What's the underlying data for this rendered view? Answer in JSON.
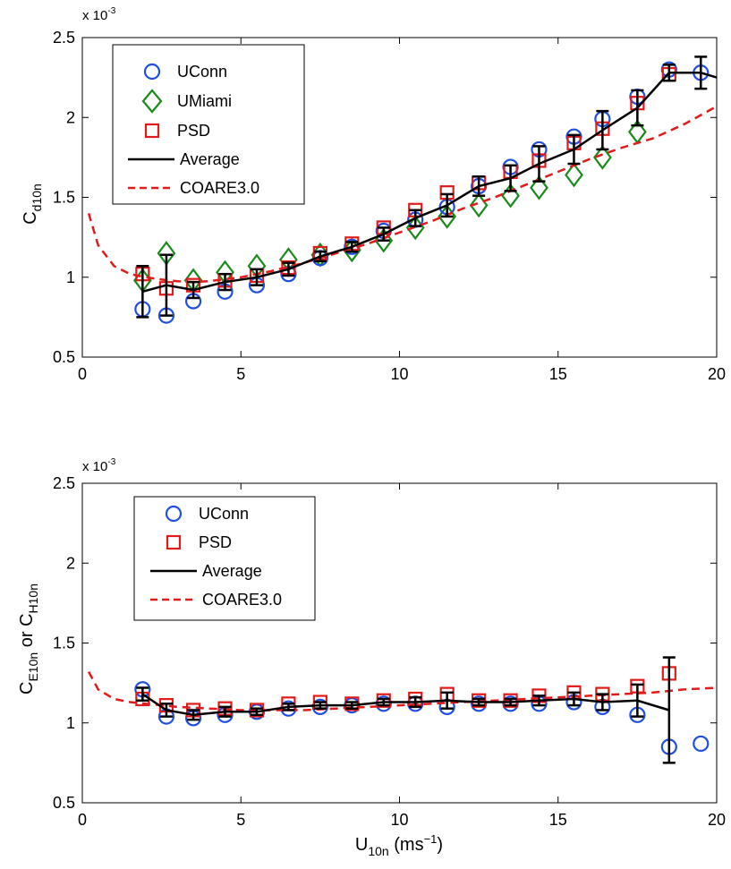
{
  "colors": {
    "uconn": "#1f4fe0",
    "umiami": "#1a8a1a",
    "psd": "#e31a1a",
    "average": "#000000",
    "coare": "#e31a1a"
  },
  "chart_data": [
    {
      "type": "scatter",
      "xlabel": "",
      "ylabel_base": "C",
      "ylabel_sub": "d10n",
      "exponent_base": "x 10",
      "exponent_sup": "-3",
      "xlim": [
        0,
        20
      ],
      "ylim": [
        0.5,
        2.5
      ],
      "xticks": [
        0,
        5,
        10,
        15,
        20
      ],
      "yticks": [
        0.5,
        1,
        1.5,
        2,
        2.5
      ],
      "xtick_labels": [
        "0",
        "5",
        "10",
        "15",
        "20"
      ],
      "ytick_labels": [
        "0.5",
        "1",
        "1.5",
        "2",
        "2.5"
      ],
      "legend_placement": "top-left",
      "legend": [
        "UConn",
        "UMiami",
        "PSD",
        "Average",
        "COARE3.0"
      ],
      "series": [
        {
          "name": "UConn",
          "marker": "circle",
          "x": [
            1.9,
            2.65,
            3.5,
            4.5,
            5.5,
            6.5,
            7.5,
            8.5,
            9.5,
            10.5,
            11.5,
            12.5,
            13.5,
            14.4,
            15.5,
            16.4,
            17.5,
            18.5,
            19.5
          ],
          "y": [
            0.8,
            0.76,
            0.85,
            0.91,
            0.95,
            1.02,
            1.12,
            1.19,
            1.29,
            1.36,
            1.44,
            1.57,
            1.69,
            1.8,
            1.88,
            1.99,
            2.13,
            2.3,
            2.28
          ]
        },
        {
          "name": "UMiami",
          "marker": "diamond",
          "x": [
            1.9,
            2.65,
            3.5,
            4.5,
            5.5,
            6.5,
            7.5,
            8.5,
            9.5,
            10.5,
            11.5,
            12.5,
            13.5,
            14.4,
            15.5,
            16.4,
            17.5
          ],
          "y": [
            0.98,
            1.15,
            0.98,
            1.03,
            1.07,
            1.11,
            1.14,
            1.17,
            1.23,
            1.31,
            1.38,
            1.45,
            1.51,
            1.56,
            1.64,
            1.75,
            1.91
          ]
        },
        {
          "name": "PSD",
          "marker": "square",
          "x": [
            1.9,
            2.65,
            3.5,
            4.5,
            5.5,
            6.5,
            7.5,
            8.5,
            9.5,
            10.5,
            11.5,
            12.5,
            13.5,
            14.4,
            15.5,
            16.4,
            17.5,
            18.5
          ],
          "y": [
            1.02,
            0.93,
            0.95,
            0.98,
            1.01,
            1.06,
            1.15,
            1.21,
            1.31,
            1.42,
            1.53,
            1.59,
            1.66,
            1.73,
            1.84,
            1.93,
            2.09,
            2.27
          ]
        },
        {
          "name": "Average",
          "marker": "line",
          "x": [
            1.9,
            2.65,
            3.5,
            4.5,
            5.5,
            6.5,
            7.5,
            8.5,
            9.5,
            10.5,
            11.5,
            12.5,
            13.5,
            14.4,
            15.5,
            16.4,
            17.5,
            18.5,
            19.5,
            20
          ],
          "y": [
            0.91,
            0.95,
            0.92,
            0.97,
            1.0,
            1.05,
            1.13,
            1.19,
            1.27,
            1.37,
            1.45,
            1.57,
            1.62,
            1.71,
            1.8,
            1.92,
            2.06,
            2.28,
            2.28,
            2.25
          ],
          "err": [
            0.16,
            0.19,
            0.05,
            0.05,
            0.05,
            0.04,
            0.03,
            0.03,
            0.04,
            0.05,
            0.07,
            0.06,
            0.08,
            0.11,
            0.09,
            0.12,
            0.11,
            0.05,
            0.1,
            0
          ]
        },
        {
          "name": "COARE3.0",
          "marker": "dashed",
          "x": [
            0.2,
            0.5,
            1.0,
            1.5,
            2.0,
            2.5,
            3.0,
            3.5,
            4.0,
            5.0,
            6.0,
            7.0,
            8.0,
            9.0,
            10.0,
            11.0,
            12.0,
            13.0,
            14.0,
            15.0,
            16.0,
            17.0,
            18.0,
            19.0,
            20.0
          ],
          "y": [
            1.4,
            1.2,
            1.07,
            1.02,
            1.0,
            0.985,
            0.975,
            0.97,
            0.975,
            1.0,
            1.04,
            1.09,
            1.15,
            1.21,
            1.28,
            1.35,
            1.43,
            1.5,
            1.58,
            1.66,
            1.74,
            1.81,
            1.87,
            1.96,
            2.07
          ]
        }
      ]
    },
    {
      "type": "scatter",
      "xlabel_base": "U",
      "xlabel_sub": "10n",
      "xlabel_unit": " (ms",
      "xlabel_sup": "−1",
      "xlabel_end": ")",
      "ylabel_base": "C",
      "ylabel_sub": "E10n",
      "ylabel_mid": " or C",
      "ylabel_sub2": "H10n",
      "exponent_base": "x 10",
      "exponent_sup": "-3",
      "xlim": [
        0,
        20
      ],
      "ylim": [
        0.5,
        2.5
      ],
      "xticks": [
        0,
        5,
        10,
        15,
        20
      ],
      "yticks": [
        0.5,
        1,
        1.5,
        2,
        2.5
      ],
      "xtick_labels": [
        "0",
        "5",
        "10",
        "15",
        "20"
      ],
      "ytick_labels": [
        "0.5",
        "1",
        "1.5",
        "2",
        "2.5"
      ],
      "legend_placement": "top-left",
      "legend": [
        "UConn",
        "PSD",
        "Average",
        "COARE3.0"
      ],
      "series": [
        {
          "name": "UConn",
          "marker": "circle",
          "x": [
            1.9,
            2.65,
            3.5,
            4.5,
            5.5,
            6.5,
            7.5,
            8.5,
            9.5,
            10.5,
            11.5,
            12.5,
            13.5,
            14.4,
            15.5,
            16.4,
            17.5,
            18.5,
            19.5
          ],
          "y": [
            1.21,
            1.04,
            1.03,
            1.05,
            1.07,
            1.09,
            1.1,
            1.11,
            1.12,
            1.12,
            1.1,
            1.12,
            1.12,
            1.12,
            1.13,
            1.1,
            1.05,
            0.85,
            0.87
          ]
        },
        {
          "name": "PSD",
          "marker": "square",
          "x": [
            1.9,
            2.65,
            3.5,
            4.5,
            5.5,
            6.5,
            7.5,
            8.5,
            9.5,
            10.5,
            11.5,
            12.5,
            13.5,
            14.4,
            15.5,
            16.4,
            17.5,
            18.5
          ],
          "y": [
            1.15,
            1.11,
            1.08,
            1.09,
            1.08,
            1.12,
            1.13,
            1.12,
            1.14,
            1.15,
            1.18,
            1.14,
            1.14,
            1.17,
            1.19,
            1.18,
            1.23,
            1.31
          ]
        },
        {
          "name": "Average",
          "marker": "line",
          "x": [
            1.9,
            2.65,
            3.5,
            4.5,
            5.5,
            6.5,
            7.5,
            8.5,
            9.5,
            10.5,
            11.5,
            12.5,
            13.5,
            14.4,
            15.5,
            16.4,
            17.5,
            18.5
          ],
          "y": [
            1.18,
            1.08,
            1.05,
            1.07,
            1.07,
            1.1,
            1.11,
            1.11,
            1.13,
            1.13,
            1.14,
            1.13,
            1.13,
            1.14,
            1.15,
            1.13,
            1.14,
            1.08
          ],
          "err": [
            0.04,
            0.04,
            0.03,
            0.03,
            0.02,
            0.02,
            0.02,
            0.02,
            0.02,
            0.03,
            0.05,
            0.02,
            0.02,
            0.03,
            0.04,
            0.05,
            0.1,
            0.33
          ]
        },
        {
          "name": "COARE3.0",
          "marker": "dashed",
          "x": [
            0.2,
            0.5,
            1.0,
            1.5,
            2.0,
            2.5,
            3.0,
            4.0,
            5.0,
            6.0,
            7.0,
            8.0,
            9.0,
            10.0,
            11.0,
            12.0,
            13.0,
            14.0,
            15.0,
            16.0,
            17.0,
            18.0,
            19.0,
            20.0
          ],
          "y": [
            1.32,
            1.21,
            1.15,
            1.13,
            1.12,
            1.11,
            1.1,
            1.09,
            1.08,
            1.08,
            1.08,
            1.09,
            1.1,
            1.11,
            1.12,
            1.13,
            1.14,
            1.15,
            1.16,
            1.17,
            1.18,
            1.19,
            1.21,
            1.22
          ]
        }
      ]
    }
  ]
}
